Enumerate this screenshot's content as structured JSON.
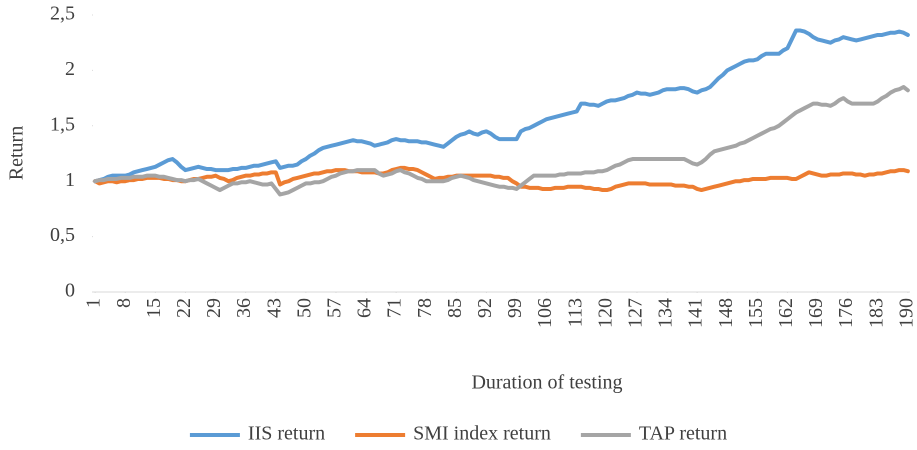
{
  "chart_data": {
    "type": "line",
    "y_label": "Return",
    "x_label": "Duration of testing",
    "xlim": [
      0.5,
      190.5
    ],
    "xticks": [
      1,
      8,
      15,
      22,
      29,
      36,
      43,
      50,
      57,
      64,
      71,
      78,
      85,
      92,
      99,
      106,
      113,
      120,
      127,
      134,
      141,
      148,
      155,
      162,
      169,
      176,
      183,
      190
    ],
    "ylim": [
      0,
      2.5
    ],
    "yticks": [
      0,
      {
        "value": 0.5,
        "label": "0,5"
      },
      1,
      {
        "value": 1.5,
        "label": "1,5"
      },
      2,
      {
        "value": 2.5,
        "label": "2,5"
      }
    ],
    "grid": false,
    "legend": "bottom",
    "x": [
      1,
      2,
      3,
      4,
      5,
      6,
      7,
      8,
      9,
      10,
      11,
      12,
      13,
      14,
      15,
      16,
      17,
      18,
      19,
      20,
      21,
      22,
      23,
      24,
      25,
      26,
      27,
      28,
      29,
      30,
      31,
      32,
      33,
      34,
      35,
      36,
      37,
      38,
      39,
      40,
      41,
      42,
      43,
      44,
      45,
      46,
      47,
      48,
      49,
      50,
      51,
      52,
      53,
      54,
      55,
      56,
      57,
      58,
      59,
      60,
      61,
      62,
      63,
      64,
      65,
      66,
      67,
      68,
      69,
      70,
      71,
      72,
      73,
      74,
      75,
      76,
      77,
      78,
      79,
      80,
      81,
      82,
      83,
      84,
      85,
      86,
      87,
      88,
      89,
      90,
      91,
      92,
      93,
      94,
      95,
      96,
      97,
      98,
      99,
      100,
      101,
      102,
      103,
      104,
      105,
      106,
      107,
      108,
      109,
      110,
      111,
      112,
      113,
      114,
      115,
      116,
      117,
      118,
      119,
      120,
      121,
      122,
      123,
      124,
      125,
      126,
      127,
      128,
      129,
      130,
      131,
      132,
      133,
      134,
      135,
      136,
      137,
      138,
      139,
      140,
      141,
      142,
      143,
      144,
      145,
      146,
      147,
      148,
      149,
      150,
      151,
      152,
      153,
      154,
      155,
      156,
      157,
      158,
      159,
      160,
      161,
      162,
      163,
      164,
      165,
      166,
      167,
      168,
      169,
      170,
      171,
      172,
      173,
      174,
      175,
      176,
      177,
      178,
      179,
      180,
      181,
      182,
      183,
      184,
      185,
      186,
      187,
      188,
      189,
      190
    ],
    "series": [
      {
        "name": "IIS return",
        "color": "#5b9bd5",
        "values": [
          1.0,
          1.01,
          1.02,
          1.04,
          1.05,
          1.05,
          1.05,
          1.05,
          1.06,
          1.08,
          1.09,
          1.1,
          1.11,
          1.12,
          1.13,
          1.15,
          1.17,
          1.19,
          1.2,
          1.17,
          1.13,
          1.1,
          1.11,
          1.12,
          1.13,
          1.12,
          1.11,
          1.11,
          1.1,
          1.1,
          1.1,
          1.1,
          1.11,
          1.11,
          1.12,
          1.12,
          1.13,
          1.14,
          1.14,
          1.15,
          1.16,
          1.17,
          1.18,
          1.12,
          1.13,
          1.14,
          1.14,
          1.15,
          1.18,
          1.2,
          1.23,
          1.25,
          1.28,
          1.3,
          1.31,
          1.32,
          1.33,
          1.34,
          1.35,
          1.36,
          1.37,
          1.36,
          1.36,
          1.35,
          1.34,
          1.32,
          1.33,
          1.34,
          1.35,
          1.37,
          1.38,
          1.37,
          1.37,
          1.36,
          1.36,
          1.36,
          1.35,
          1.35,
          1.34,
          1.33,
          1.32,
          1.31,
          1.34,
          1.37,
          1.4,
          1.42,
          1.43,
          1.45,
          1.43,
          1.42,
          1.44,
          1.45,
          1.43,
          1.4,
          1.38,
          1.38,
          1.38,
          1.38,
          1.38,
          1.45,
          1.47,
          1.48,
          1.5,
          1.52,
          1.54,
          1.56,
          1.57,
          1.58,
          1.59,
          1.6,
          1.61,
          1.62,
          1.63,
          1.7,
          1.7,
          1.69,
          1.69,
          1.68,
          1.7,
          1.72,
          1.73,
          1.73,
          1.74,
          1.75,
          1.77,
          1.78,
          1.8,
          1.79,
          1.79,
          1.78,
          1.79,
          1.8,
          1.82,
          1.83,
          1.83,
          1.83,
          1.84,
          1.84,
          1.83,
          1.81,
          1.8,
          1.82,
          1.83,
          1.85,
          1.89,
          1.93,
          1.96,
          2.0,
          2.02,
          2.04,
          2.06,
          2.08,
          2.09,
          2.09,
          2.1,
          2.13,
          2.15,
          2.15,
          2.15,
          2.15,
          2.18,
          2.2,
          2.28,
          2.36,
          2.36,
          2.35,
          2.33,
          2.3,
          2.28,
          2.27,
          2.26,
          2.25,
          2.27,
          2.28,
          2.3,
          2.29,
          2.28,
          2.27,
          2.28,
          2.29,
          2.3,
          2.31,
          2.32,
          2.32,
          2.33,
          2.34,
          2.34,
          2.35,
          2.34,
          2.32
        ]
      },
      {
        "name": "SMI index return",
        "color": "#ed7d31",
        "values": [
          1.0,
          0.98,
          0.99,
          1.0,
          1.0,
          0.99,
          1.0,
          1.0,
          1.01,
          1.01,
          1.02,
          1.02,
          1.03,
          1.03,
          1.03,
          1.03,
          1.02,
          1.02,
          1.01,
          1.01,
          1.0,
          1.0,
          1.01,
          1.02,
          1.02,
          1.03,
          1.04,
          1.04,
          1.05,
          1.03,
          1.02,
          1.0,
          1.01,
          1.03,
          1.04,
          1.05,
          1.05,
          1.06,
          1.06,
          1.07,
          1.07,
          1.08,
          1.08,
          0.97,
          0.99,
          1.0,
          1.02,
          1.03,
          1.04,
          1.05,
          1.06,
          1.07,
          1.07,
          1.08,
          1.09,
          1.09,
          1.1,
          1.1,
          1.1,
          1.09,
          1.09,
          1.09,
          1.08,
          1.08,
          1.08,
          1.08,
          1.07,
          1.07,
          1.08,
          1.1,
          1.11,
          1.12,
          1.12,
          1.11,
          1.11,
          1.1,
          1.08,
          1.06,
          1.04,
          1.02,
          1.03,
          1.03,
          1.04,
          1.04,
          1.05,
          1.05,
          1.05,
          1.05,
          1.05,
          1.05,
          1.05,
          1.05,
          1.05,
          1.04,
          1.04,
          1.03,
          1.03,
          1.0,
          0.98,
          0.95,
          0.95,
          0.94,
          0.94,
          0.94,
          0.93,
          0.93,
          0.93,
          0.94,
          0.94,
          0.94,
          0.95,
          0.95,
          0.95,
          0.95,
          0.94,
          0.94,
          0.93,
          0.93,
          0.92,
          0.92,
          0.93,
          0.95,
          0.96,
          0.97,
          0.98,
          0.98,
          0.98,
          0.98,
          0.98,
          0.97,
          0.97,
          0.97,
          0.97,
          0.97,
          0.97,
          0.96,
          0.96,
          0.96,
          0.95,
          0.95,
          0.93,
          0.92,
          0.93,
          0.94,
          0.95,
          0.96,
          0.97,
          0.98,
          0.99,
          1.0,
          1.0,
          1.01,
          1.01,
          1.02,
          1.02,
          1.02,
          1.02,
          1.03,
          1.03,
          1.03,
          1.03,
          1.03,
          1.02,
          1.02,
          1.04,
          1.06,
          1.08,
          1.07,
          1.06,
          1.05,
          1.05,
          1.06,
          1.06,
          1.06,
          1.07,
          1.07,
          1.07,
          1.06,
          1.06,
          1.05,
          1.06,
          1.06,
          1.07,
          1.07,
          1.08,
          1.09,
          1.09,
          1.1,
          1.1,
          1.09
        ]
      },
      {
        "name": "TAP return",
        "color": "#a5a5a5",
        "values": [
          1.0,
          1.01,
          1.01,
          1.02,
          1.02,
          1.02,
          1.03,
          1.03,
          1.03,
          1.04,
          1.04,
          1.04,
          1.05,
          1.05,
          1.05,
          1.04,
          1.04,
          1.03,
          1.02,
          1.01,
          1.01,
          1.0,
          1.01,
          1.01,
          1.02,
          1.0,
          0.98,
          0.96,
          0.94,
          0.92,
          0.94,
          0.96,
          0.98,
          0.98,
          0.99,
          0.99,
          1.0,
          0.99,
          0.98,
          0.97,
          0.97,
          0.98,
          0.93,
          0.88,
          0.89,
          0.9,
          0.92,
          0.94,
          0.96,
          0.98,
          0.98,
          0.99,
          0.99,
          1.0,
          1.02,
          1.04,
          1.05,
          1.07,
          1.08,
          1.09,
          1.09,
          1.1,
          1.1,
          1.1,
          1.1,
          1.1,
          1.07,
          1.05,
          1.06,
          1.07,
          1.09,
          1.1,
          1.08,
          1.07,
          1.05,
          1.03,
          1.02,
          1.0,
          1.0,
          1.0,
          1.0,
          1.0,
          1.01,
          1.03,
          1.04,
          1.05,
          1.04,
          1.03,
          1.01,
          1.0,
          0.99,
          0.98,
          0.97,
          0.96,
          0.95,
          0.95,
          0.94,
          0.94,
          0.93,
          0.96,
          0.99,
          1.02,
          1.05,
          1.05,
          1.05,
          1.05,
          1.05,
          1.05,
          1.06,
          1.06,
          1.07,
          1.07,
          1.07,
          1.07,
          1.08,
          1.08,
          1.08,
          1.09,
          1.09,
          1.1,
          1.12,
          1.14,
          1.15,
          1.17,
          1.19,
          1.2,
          1.2,
          1.2,
          1.2,
          1.2,
          1.2,
          1.2,
          1.2,
          1.2,
          1.2,
          1.2,
          1.2,
          1.2,
          1.18,
          1.16,
          1.15,
          1.17,
          1.2,
          1.24,
          1.27,
          1.28,
          1.29,
          1.3,
          1.31,
          1.32,
          1.34,
          1.35,
          1.37,
          1.39,
          1.41,
          1.43,
          1.45,
          1.47,
          1.48,
          1.5,
          1.53,
          1.56,
          1.59,
          1.62,
          1.64,
          1.66,
          1.68,
          1.7,
          1.7,
          1.69,
          1.69,
          1.68,
          1.7,
          1.73,
          1.75,
          1.72,
          1.7,
          1.7,
          1.7,
          1.7,
          1.7,
          1.7,
          1.72,
          1.75,
          1.77,
          1.8,
          1.82,
          1.83,
          1.85,
          1.82
        ]
      }
    ]
  }
}
